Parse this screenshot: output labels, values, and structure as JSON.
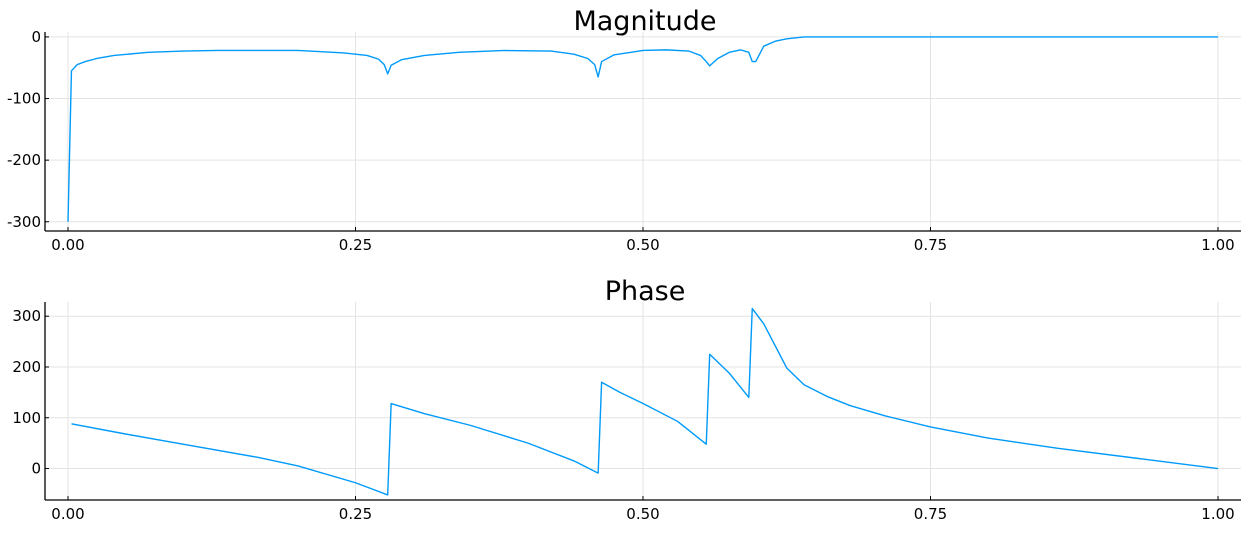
{
  "chart_data": [
    {
      "type": "line",
      "title": "Magnitude",
      "xlabel": "",
      "ylabel": "",
      "xlim": [
        -0.02,
        1.02
      ],
      "ylim": [
        -315,
        8
      ],
      "xticks": [
        0.0,
        0.25,
        0.5,
        0.75,
        1.0
      ],
      "xtick_labels": [
        "0.00",
        "0.25",
        "0.50",
        "0.75",
        "1.00"
      ],
      "yticks": [
        0,
        -100,
        -200,
        -300
      ],
      "ytick_labels": [
        "0",
        "-100",
        "-200",
        "-300"
      ],
      "grid": true,
      "legend": "none",
      "color": "#009AFA",
      "series": [
        {
          "x": [
            0.0,
            0.003,
            0.008,
            0.015,
            0.025,
            0.04,
            0.07,
            0.1,
            0.13,
            0.165,
            0.2,
            0.24,
            0.26,
            0.27,
            0.275,
            0.278,
            0.281,
            0.29,
            0.31,
            0.34,
            0.38,
            0.42,
            0.44,
            0.452,
            0.458,
            0.461,
            0.464,
            0.475,
            0.5,
            0.52,
            0.54,
            0.55,
            0.555,
            0.558,
            0.565,
            0.575,
            0.585,
            0.592,
            0.595,
            0.598,
            0.605,
            0.615,
            0.625,
            0.64,
            0.7,
            0.8,
            0.9,
            1.0
          ],
          "y": [
            -300,
            -55,
            -45,
            -40,
            -35,
            -30,
            -25,
            -23,
            -22,
            -22,
            -22,
            -26,
            -30,
            -36,
            -45,
            -60,
            -46,
            -37,
            -30,
            -25,
            -22,
            -23,
            -28,
            -35,
            -45,
            -65,
            -40,
            -29,
            -22,
            -21,
            -23,
            -30,
            -40,
            -47,
            -35,
            -25,
            -21,
            -25,
            -40,
            -40,
            -15,
            -7,
            -3,
            0,
            0,
            0,
            0,
            0
          ]
        }
      ]
    },
    {
      "type": "line",
      "title": "Phase",
      "xlabel": "",
      "ylabel": "",
      "xlim": [
        -0.02,
        1.02
      ],
      "ylim": [
        -62,
        328
      ],
      "xticks": [
        0.0,
        0.25,
        0.5,
        0.75,
        1.0
      ],
      "xtick_labels": [
        "0.00",
        "0.25",
        "0.50",
        "0.75",
        "1.00"
      ],
      "yticks": [
        300,
        200,
        100,
        0
      ],
      "ytick_labels": [
        "300",
        "200",
        "100",
        "0"
      ],
      "grid": true,
      "legend": "none",
      "color": "#009AFA",
      "series": [
        {
          "x": [
            0.003,
            0.05,
            0.1,
            0.165,
            0.2,
            0.25,
            0.278,
            0.281,
            0.31,
            0.35,
            0.4,
            0.44,
            0.461,
            0.464,
            0.48,
            0.5,
            0.53,
            0.555,
            0.558,
            0.575,
            0.592,
            0.595,
            0.605,
            0.625,
            0.64,
            0.66,
            0.68,
            0.71,
            0.75,
            0.8,
            0.86,
            0.93,
            1.0
          ],
          "y": [
            88,
            68,
            48,
            22,
            5,
            -28,
            -52,
            128,
            108,
            85,
            50,
            15,
            -9,
            170,
            150,
            128,
            93,
            48,
            225,
            188,
            140,
            315,
            285,
            198,
            165,
            142,
            124,
            104,
            82,
            60,
            40,
            20,
            0
          ]
        }
      ]
    }
  ]
}
